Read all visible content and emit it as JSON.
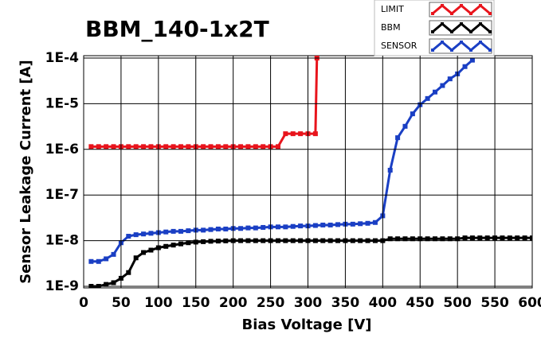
{
  "chart_data": {
    "type": "line",
    "title": "BBM_140-1x2T",
    "x_label": "Bias Voltage [V]",
    "y_label": "Sensor Leakage Current [A]",
    "log_y": true,
    "grid": true,
    "legend": "top-right",
    "xlim": [
      0,
      600
    ],
    "xticks": [
      0,
      50,
      100,
      150,
      200,
      250,
      300,
      350,
      400,
      450,
      500,
      550,
      600
    ],
    "ylim": [
      1e-09,
      0.0001
    ],
    "yticks": [
      {
        "value": 1e-09,
        "label": "1E-9"
      },
      {
        "value": 1e-08,
        "label": "1E-8"
      },
      {
        "value": 1e-07,
        "label": "1E-7"
      },
      {
        "value": 1e-06,
        "label": "1E-6"
      },
      {
        "value": 1e-05,
        "label": "1E-5"
      },
      {
        "value": 0.0001,
        "label": "1E-4"
      }
    ],
    "series": [
      {
        "name": "LIMIT",
        "color": "#e8141c",
        "x": [
          10,
          20,
          30,
          40,
          50,
          60,
          70,
          80,
          90,
          100,
          110,
          120,
          130,
          140,
          150,
          160,
          170,
          180,
          190,
          200,
          210,
          220,
          230,
          240,
          250,
          260,
          270,
          280,
          290,
          300,
          310,
          312
        ],
        "values": [
          1.15e-06,
          1.15e-06,
          1.15e-06,
          1.15e-06,
          1.15e-06,
          1.15e-06,
          1.15e-06,
          1.15e-06,
          1.15e-06,
          1.15e-06,
          1.15e-06,
          1.15e-06,
          1.15e-06,
          1.15e-06,
          1.15e-06,
          1.15e-06,
          1.15e-06,
          1.15e-06,
          1.15e-06,
          1.15e-06,
          1.15e-06,
          1.15e-06,
          1.15e-06,
          1.15e-06,
          1.15e-06,
          1.15e-06,
          2.2e-06,
          2.2e-06,
          2.2e-06,
          2.2e-06,
          2.2e-06,
          0.0001
        ]
      },
      {
        "name": "BBM",
        "color": "#000000",
        "x": [
          10,
          20,
          30,
          40,
          50,
          60,
          70,
          80,
          90,
          100,
          110,
          120,
          130,
          140,
          150,
          160,
          170,
          180,
          190,
          200,
          210,
          220,
          230,
          240,
          250,
          260,
          270,
          280,
          290,
          300,
          310,
          320,
          330,
          340,
          350,
          360,
          370,
          380,
          390,
          400,
          410,
          420,
          430,
          440,
          450,
          460,
          470,
          480,
          490,
          500,
          510,
          520,
          530,
          540,
          550,
          560,
          570,
          580,
          590,
          600
        ],
        "values": [
          1e-09,
          1e-09,
          1.1e-09,
          1.2e-09,
          1.5e-09,
          2e-09,
          4.2e-09,
          5.5e-09,
          6.2e-09,
          7e-09,
          7.5e-09,
          8e-09,
          8.5e-09,
          9e-09,
          9.3e-09,
          9.5e-09,
          9.7e-09,
          9.8e-09,
          9.9e-09,
          1e-08,
          1e-08,
          1e-08,
          1e-08,
          1e-08,
          1e-08,
          1e-08,
          1e-08,
          1e-08,
          1e-08,
          1e-08,
          1e-08,
          1e-08,
          1e-08,
          1e-08,
          1e-08,
          1e-08,
          1e-08,
          1e-08,
          1e-08,
          1e-08,
          1.1e-08,
          1.1e-08,
          1.1e-08,
          1.1e-08,
          1.1e-08,
          1.1e-08,
          1.1e-08,
          1.1e-08,
          1.1e-08,
          1.1e-08,
          1.15e-08,
          1.15e-08,
          1.15e-08,
          1.15e-08,
          1.15e-08,
          1.15e-08,
          1.15e-08,
          1.15e-08,
          1.15e-08,
          1.15e-08
        ]
      },
      {
        "name": "SENSOR",
        "color": "#1a3fc4",
        "x": [
          10,
          20,
          30,
          40,
          50,
          60,
          70,
          80,
          90,
          100,
          110,
          120,
          130,
          140,
          150,
          160,
          170,
          180,
          190,
          200,
          210,
          220,
          230,
          240,
          250,
          260,
          270,
          280,
          290,
          300,
          310,
          320,
          330,
          340,
          350,
          360,
          370,
          380,
          390,
          400,
          410,
          420,
          430,
          440,
          450,
          460,
          470,
          480,
          490,
          500,
          510,
          520
        ],
        "values": [
          3.5e-09,
          3.5e-09,
          4e-09,
          5e-09,
          9e-09,
          1.25e-08,
          1.35e-08,
          1.4e-08,
          1.45e-08,
          1.5e-08,
          1.55e-08,
          1.6e-08,
          1.6e-08,
          1.65e-08,
          1.7e-08,
          1.7e-08,
          1.75e-08,
          1.8e-08,
          1.8e-08,
          1.85e-08,
          1.85e-08,
          1.9e-08,
          1.9e-08,
          1.95e-08,
          2e-08,
          2e-08,
          2e-08,
          2.05e-08,
          2.1e-08,
          2.1e-08,
          2.15e-08,
          2.2e-08,
          2.2e-08,
          2.25e-08,
          2.3e-08,
          2.3e-08,
          2.35e-08,
          2.4e-08,
          2.5e-08,
          3.5e-08,
          3.5e-07,
          1.8e-06,
          3.2e-06,
          6e-06,
          9.5e-06,
          1.3e-05,
          1.8e-05,
          2.5e-05,
          3.5e-05,
          4.5e-05,
          6.5e-05,
          9e-05
        ]
      }
    ]
  }
}
